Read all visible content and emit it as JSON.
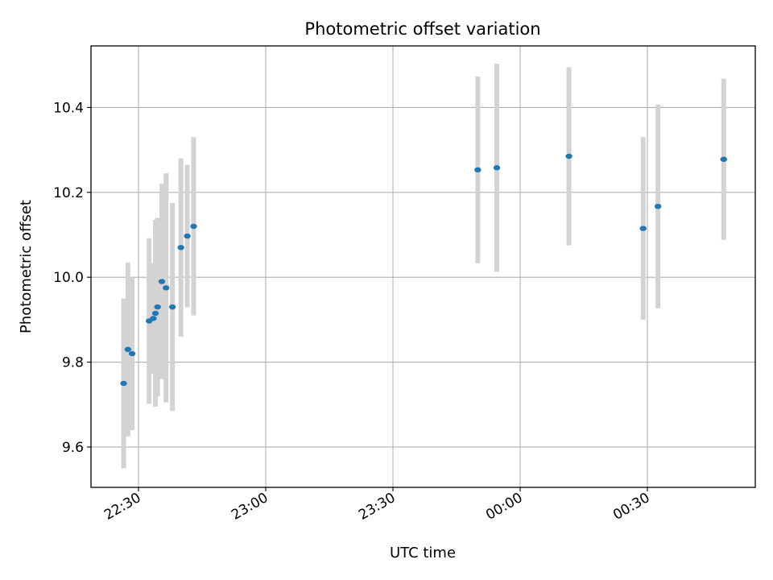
{
  "chart_data": {
    "type": "scatter",
    "title": "Photometric offset variation",
    "xlabel": "UTC time",
    "ylabel": "Photometric offset",
    "x_tick_labels": [
      "22:30",
      "23:00",
      "23:30",
      "00:00",
      "00:30"
    ],
    "y_tick_labels": [
      "9.6",
      "9.8",
      "10.0",
      "10.2",
      "10.4"
    ],
    "y_ticks": [
      9.6,
      9.8,
      10.0,
      10.2,
      10.4
    ],
    "ylim": [
      9.505,
      10.545
    ],
    "grid": true,
    "marker_color": "#1f77b4",
    "errorbar_color": "#d3d3d3",
    "points": [
      {
        "time": "22:26:30",
        "y": 9.75,
        "err": 0.2
      },
      {
        "time": "22:27:30",
        "y": 9.83,
        "err": 0.205
      },
      {
        "time": "22:28:30",
        "y": 9.82,
        "err": 0.18
      },
      {
        "time": "22:32:30",
        "y": 9.897,
        "err": 0.195
      },
      {
        "time": "22:33:30",
        "y": 9.903,
        "err": 0.13
      },
      {
        "time": "22:34:00",
        "y": 9.915,
        "err": 0.22
      },
      {
        "time": "22:34:30",
        "y": 9.93,
        "err": 0.21
      },
      {
        "time": "22:35:30",
        "y": 9.99,
        "err": 0.23
      },
      {
        "time": "22:36:30",
        "y": 9.975,
        "err": 0.27
      },
      {
        "time": "22:38:00",
        "y": 9.93,
        "err": 0.245
      },
      {
        "time": "22:40:00",
        "y": 10.07,
        "err": 0.21
      },
      {
        "time": "22:41:30",
        "y": 10.097,
        "err": 0.168
      },
      {
        "time": "22:43:00",
        "y": 10.12,
        "err": 0.21
      },
      {
        "time": "23:50:00",
        "y": 10.253,
        "err": 0.22
      },
      {
        "time": "23:54:30",
        "y": 10.258,
        "err": 0.245
      },
      {
        "time": "00:11:30",
        "y": 10.285,
        "err": 0.21
      },
      {
        "time": "00:29:00",
        "y": 10.115,
        "err": 0.215
      },
      {
        "time": "00:32:30",
        "y": 10.167,
        "err": 0.24
      },
      {
        "time": "00:48:00",
        "y": 10.278,
        "err": 0.19
      }
    ]
  }
}
